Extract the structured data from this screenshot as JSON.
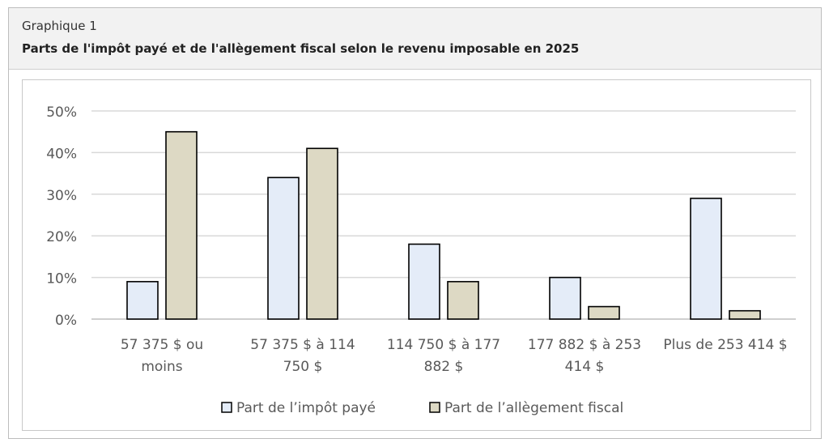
{
  "header": {
    "kicker": "Graphique 1",
    "title": "Parts de l'impôt payé et de l'allègement fiscal selon le revenu imposable en 2025"
  },
  "chart_data": {
    "type": "bar",
    "categories": [
      [
        "57 375 $ ou",
        "moins"
      ],
      [
        "57 375 $ à 114",
        "750 $"
      ],
      [
        "114 750 $ à 177",
        "882 $"
      ],
      [
        "177 882 $ à 253",
        "414 $"
      ],
      [
        "Plus de 253 414 $"
      ]
    ],
    "series": [
      {
        "name": "Part de l’impôt payé",
        "values": [
          9,
          34,
          18,
          10,
          29
        ],
        "color": "#e4ecf8"
      },
      {
        "name": "Part de l’allègement fiscal",
        "values": [
          45,
          41,
          9,
          3,
          2
        ],
        "color": "#ddd9c4"
      }
    ],
    "yticks": [
      "0%",
      "10%",
      "20%",
      "30%",
      "40%",
      "50%"
    ],
    "ylim": [
      0,
      50
    ],
    "grid": true,
    "legend_position": "bottom"
  }
}
